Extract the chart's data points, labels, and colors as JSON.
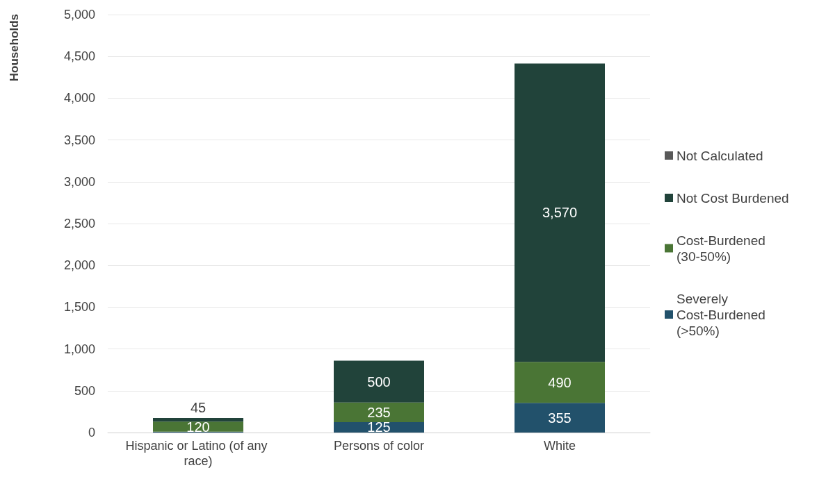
{
  "chart_data": {
    "type": "bar",
    "stacked": true,
    "ylabel": "Households",
    "categories": [
      "Hispanic or Latino (of any race)",
      "Persons of color",
      "White"
    ],
    "series": [
      {
        "name": "Severely Cost-Burdened (>50%)",
        "color": "#22516b",
        "values": [
          10,
          125,
          355
        ],
        "value_labels": [
          null,
          "125",
          "355"
        ]
      },
      {
        "name": "Cost-Burdened (30-50%)",
        "color": "#4a7535",
        "values": [
          120,
          235,
          490
        ],
        "value_labels": [
          "120",
          "235",
          "490"
        ]
      },
      {
        "name": "Not Cost Burdened",
        "color": "#21433a",
        "values": [
          45,
          500,
          3570
        ],
        "value_labels": [
          "45",
          "500",
          "3,570"
        ]
      },
      {
        "name": "Not Calculated",
        "color": "#595959",
        "values": [
          null,
          null,
          null
        ]
      }
    ],
    "ylim": [
      0,
      5000
    ],
    "yticks": [
      {
        "value": 0,
        "label": "0"
      },
      {
        "value": 500,
        "label": "500"
      },
      {
        "value": 1000,
        "label": "1,000"
      },
      {
        "value": 1500,
        "label": "1,500"
      },
      {
        "value": 2000,
        "label": "2,000"
      },
      {
        "value": 2500,
        "label": "2,500"
      },
      {
        "value": 3000,
        "label": "3,000"
      },
      {
        "value": 3500,
        "label": "3,500"
      },
      {
        "value": 4000,
        "label": "4,000"
      },
      {
        "value": 4500,
        "label": "4,500"
      },
      {
        "value": 5000,
        "label": "5,000"
      }
    ],
    "grid": "y",
    "legend": "right"
  }
}
